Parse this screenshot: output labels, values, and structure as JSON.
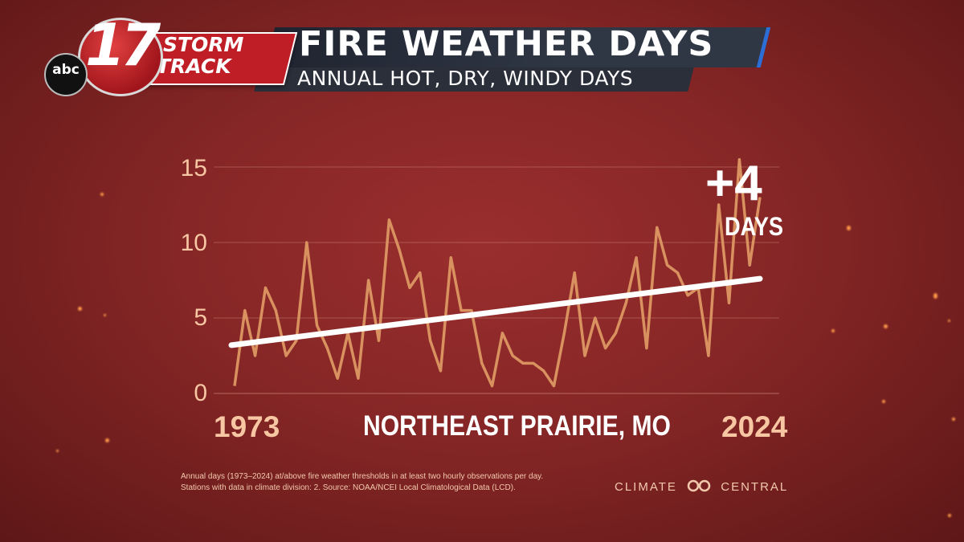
{
  "header": {
    "network": "abc",
    "channel": "17",
    "brand_line1": "STORM",
    "brand_line2": "TRACK",
    "title": "FIRE WEATHER DAYS",
    "subtitle": "ANNUAL HOT, DRY, WINDY DAYS"
  },
  "chart_data": {
    "type": "line",
    "title": "FIRE WEATHER DAYS",
    "subtitle": "ANNUAL HOT, DRY, WINDY DAYS",
    "xlabel": "NORTHEAST PRAIRIE, MO",
    "ylabel": "",
    "x_range": [
      1973,
      2024
    ],
    "x_tick_labels": [
      "1973",
      "2024"
    ],
    "ylim": [
      0,
      16
    ],
    "y_ticks": [
      0,
      5,
      10,
      15
    ],
    "y_tick_labels": [
      "0",
      "5",
      "10",
      "15"
    ],
    "grid": true,
    "series": [
      {
        "x": [
          1973,
          1974,
          1975,
          1976,
          1977,
          1978,
          1979,
          1980,
          1981,
          1982,
          1983,
          1984,
          1985,
          1986,
          1987,
          1988,
          1989,
          1990,
          1991,
          1992,
          1993,
          1994,
          1995,
          1996,
          1997,
          1998,
          1999,
          2000,
          2001,
          2002,
          2003,
          2004,
          2005,
          2006,
          2007,
          2008,
          2009,
          2010,
          2011,
          2012,
          2013,
          2014,
          2015,
          2016,
          2017,
          2018,
          2019,
          2020,
          2021,
          2022,
          2023,
          2024
        ],
        "values": [
          0.5,
          5.5,
          2.5,
          7,
          5.5,
          2.5,
          3.5,
          10,
          4.5,
          3,
          1,
          4,
          1,
          7.5,
          3.5,
          11.5,
          9.5,
          7,
          8,
          3.5,
          1.5,
          9,
          5.5,
          5.5,
          2,
          0.5,
          4,
          2.5,
          2,
          2,
          1.5,
          0.5,
          4,
          8,
          2.5,
          5,
          3,
          4,
          6,
          9,
          3,
          11,
          8.5,
          8,
          6.5,
          7,
          2.5,
          12.5,
          6,
          15.5,
          8.5,
          13
        ],
        "color": "#d9915f"
      }
    ],
    "trend": {
      "x": [
        1973,
        2024
      ],
      "values": [
        3.2,
        7.6
      ],
      "color": "#ffffff"
    },
    "annotation": {
      "value": "+4",
      "unit": "DAYS"
    }
  },
  "footnote": {
    "line1": "Annual days (1973–2024) at/above fire weather thresholds in at least two hourly observations per day.",
    "line2": "Stations with data in climate division: 2. Source: NOAA/NCEI Local Climatological Data (LCD)."
  },
  "brand": {
    "left": "CLIMATE",
    "right": "CENTRAL"
  }
}
